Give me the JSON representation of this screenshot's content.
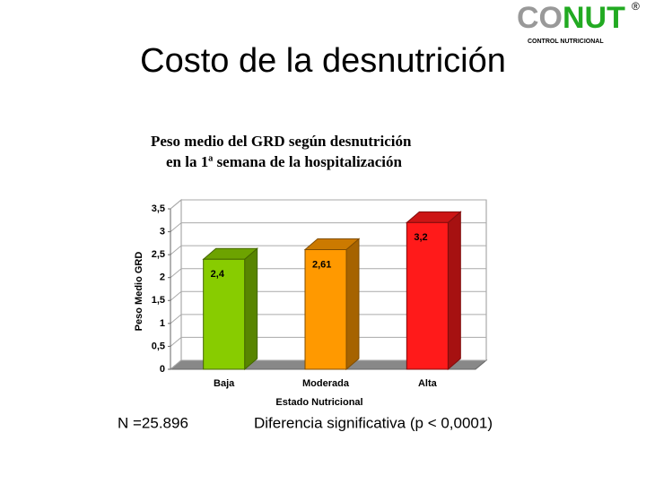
{
  "slide": {
    "title": "Costo de la desnutrición",
    "logo": {
      "gray": "CO",
      "green": "NUT",
      "mark": "®",
      "subtitle": "CONTROL NUTRICIONAL"
    },
    "footnote_left": "N =25.896",
    "footnote_right": "Diferencia significativa  (p < 0,0001)"
  },
  "chart_data": {
    "type": "bar",
    "title": [
      "Peso medio del GRD según desnutrición",
      "en la 1ª semana de la hospitalización"
    ],
    "categories": [
      "Baja",
      "Moderada",
      "Alta"
    ],
    "values": [
      2.4,
      2.61,
      3.2
    ],
    "value_labels": [
      "2,4",
      "2,61",
      "3,2"
    ],
    "colors": [
      "#88cc00",
      "#ff9900",
      "#ff1a1a"
    ],
    "ylabel": "Peso Medio GRD",
    "xlabel": "Estado Nutricional",
    "ylim": [
      0,
      3.5
    ],
    "yticks": [
      0,
      {
        "value": 0.5,
        "label": "0,5"
      },
      1,
      {
        "value": 1.5,
        "label": "1,5"
      },
      2,
      {
        "value": 2.5,
        "label": "2,5"
      },
      3,
      {
        "value": 3.5,
        "label": "3,5"
      }
    ],
    "grid": true
  }
}
